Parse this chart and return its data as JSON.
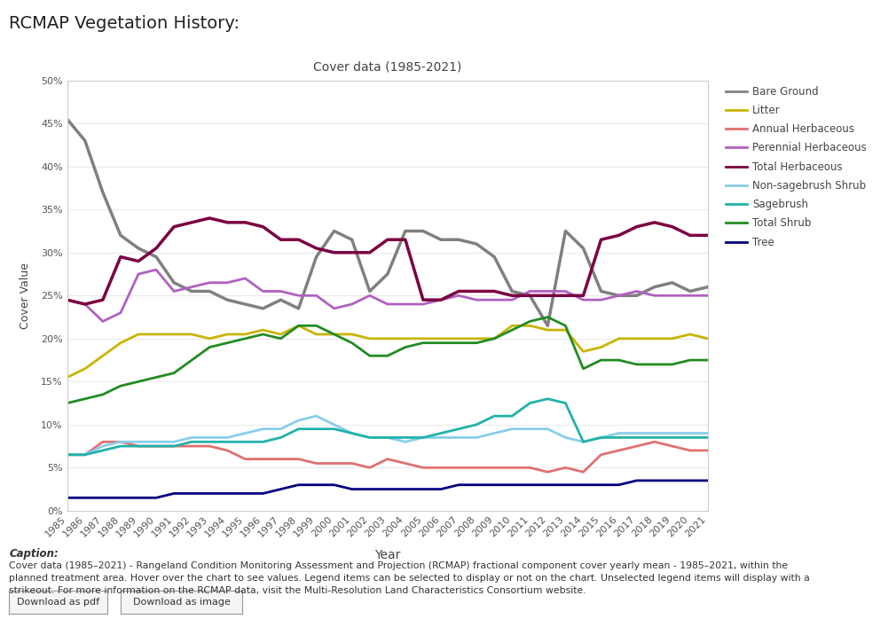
{
  "title": "RCMAP Vegetation History:",
  "chart_title": "Cover data (1985-2021)",
  "xlabel": "Year",
  "ylabel": "Cover Value",
  "years": [
    1985,
    1986,
    1987,
    1988,
    1989,
    1990,
    1991,
    1992,
    1993,
    1994,
    1995,
    1996,
    1997,
    1998,
    1999,
    2000,
    2001,
    2002,
    2003,
    2004,
    2005,
    2006,
    2007,
    2008,
    2009,
    2010,
    2011,
    2012,
    2013,
    2014,
    2015,
    2016,
    2017,
    2018,
    2019,
    2020,
    2021
  ],
  "series": {
    "Bare Ground": {
      "color": "#808080",
      "values": [
        45.5,
        43.0,
        37.0,
        32.0,
        30.5,
        29.5,
        26.5,
        25.5,
        25.5,
        24.5,
        24.0,
        23.5,
        24.5,
        23.5,
        29.5,
        32.5,
        31.5,
        25.5,
        27.5,
        32.5,
        32.5,
        31.5,
        31.5,
        31.0,
        29.5,
        25.5,
        25.0,
        21.5,
        32.5,
        30.5,
        25.5,
        25.0,
        25.0,
        26.0,
        26.5,
        25.5,
        26.0
      ]
    },
    "Litter": {
      "color": "#c8b400",
      "values": [
        15.5,
        16.5,
        18.0,
        19.5,
        20.5,
        20.5,
        20.5,
        20.5,
        20.0,
        20.5,
        20.5,
        21.0,
        20.5,
        21.5,
        20.5,
        20.5,
        20.5,
        20.0,
        20.0,
        20.0,
        20.0,
        20.0,
        20.0,
        20.0,
        20.0,
        21.5,
        21.5,
        21.0,
        21.0,
        18.5,
        19.0,
        20.0,
        20.0,
        20.0,
        20.0,
        20.5,
        20.0
      ]
    },
    "Annual Herbaceous": {
      "color": "#e07070",
      "values": [
        6.5,
        6.5,
        8.0,
        8.0,
        7.5,
        7.5,
        7.5,
        7.5,
        7.5,
        7.0,
        6.0,
        6.0,
        6.0,
        6.0,
        5.5,
        5.5,
        5.5,
        5.0,
        6.0,
        5.5,
        5.0,
        5.0,
        5.0,
        5.0,
        5.0,
        5.0,
        5.0,
        4.5,
        5.0,
        4.5,
        6.5,
        7.0,
        7.5,
        8.0,
        7.5,
        7.0,
        7.0
      ]
    },
    "Perennial Herbaceous": {
      "color": "#b060c0",
      "values": [
        24.5,
        24.0,
        22.0,
        23.0,
        27.5,
        28.0,
        25.5,
        26.0,
        26.5,
        26.5,
        27.0,
        25.5,
        25.5,
        25.0,
        25.0,
        23.5,
        24.0,
        25.0,
        24.0,
        24.0,
        24.0,
        24.5,
        25.0,
        24.5,
        24.5,
        24.5,
        25.5,
        25.5,
        25.5,
        24.5,
        24.5,
        25.0,
        25.5,
        25.0,
        25.0,
        25.0,
        25.0
      ]
    },
    "Total Herbaceous": {
      "color": "#7b0040",
      "values": [
        24.5,
        24.0,
        24.5,
        29.5,
        29.0,
        30.5,
        33.0,
        33.5,
        34.0,
        33.5,
        33.5,
        33.0,
        31.5,
        31.5,
        30.5,
        30.0,
        30.0,
        30.0,
        31.5,
        31.5,
        24.5,
        24.5,
        25.5,
        25.5,
        25.5,
        25.0,
        25.0,
        25.0,
        25.0,
        25.0,
        31.5,
        32.0,
        33.0,
        33.5,
        33.0,
        32.0,
        32.0
      ]
    },
    "Non-sagebrush Shrub": {
      "color": "#87ceeb",
      "values": [
        6.5,
        6.5,
        7.5,
        8.0,
        8.0,
        8.0,
        8.0,
        8.5,
        8.5,
        8.5,
        9.0,
        9.5,
        9.5,
        10.5,
        11.0,
        10.0,
        9.0,
        8.5,
        8.5,
        8.0,
        8.5,
        8.5,
        8.5,
        8.5,
        9.0,
        9.5,
        9.5,
        9.5,
        8.5,
        8.0,
        8.5,
        9.0,
        9.0,
        9.0,
        9.0,
        9.0,
        9.0
      ]
    },
    "Sagebrush": {
      "color": "#20b2aa",
      "values": [
        6.5,
        6.5,
        7.0,
        7.5,
        7.5,
        7.5,
        7.5,
        8.0,
        8.0,
        8.0,
        8.0,
        8.0,
        8.5,
        9.5,
        9.5,
        9.5,
        9.0,
        8.5,
        8.5,
        8.5,
        8.5,
        9.0,
        9.5,
        10.0,
        11.0,
        11.0,
        12.5,
        13.0,
        12.5,
        8.0,
        8.5,
        8.5,
        8.5,
        8.5,
        8.5,
        8.5,
        8.5
      ]
    },
    "Total Shrub": {
      "color": "#228B22",
      "values": [
        12.5,
        13.0,
        13.5,
        14.5,
        15.0,
        15.5,
        16.0,
        17.5,
        19.0,
        19.5,
        20.0,
        20.5,
        20.0,
        21.5,
        21.5,
        20.5,
        19.5,
        18.0,
        18.0,
        19.0,
        19.5,
        19.5,
        19.5,
        19.5,
        20.0,
        21.0,
        22.0,
        22.5,
        21.5,
        16.5,
        17.5,
        17.5,
        17.0,
        17.0,
        17.0,
        17.5,
        17.5
      ]
    },
    "Tree": {
      "color": "#000080",
      "values": [
        1.5,
        1.5,
        1.5,
        1.5,
        1.5,
        1.5,
        2.0,
        2.0,
        2.0,
        2.0,
        2.0,
        2.0,
        2.5,
        3.0,
        3.0,
        3.0,
        2.5,
        2.5,
        2.5,
        2.5,
        2.5,
        2.5,
        3.0,
        3.0,
        3.0,
        3.0,
        3.0,
        3.0,
        3.0,
        3.0,
        3.0,
        3.0,
        3.5,
        3.5,
        3.5,
        3.5,
        3.5
      ]
    }
  },
  "series_order": [
    "Bare Ground",
    "Litter",
    "Annual Herbaceous",
    "Perennial Herbaceous",
    "Total Herbaceous",
    "Non-sagebrush Shrub",
    "Sagebrush",
    "Total Shrub",
    "Tree"
  ],
  "caption_title": "Caption:",
  "caption_line1": "Cover data (1985–2021) - Rangeland Condition Monitoring Assessment and Projection (RCMAP) fractional component cover yearly mean - 1985–2021, within the",
  "caption_line2": "planned treatment area. Hover over the chart to see values. Legend items can be selected to display or not on the chart. Unselected legend items will display with a",
  "caption_line3": "strikeout. For more information on the RCMAP data, visit the Multi-Resolution Land Characteristics Consortium website.",
  "button1": "Download as pdf",
  "button2": "Download as image",
  "ylim": [
    0,
    50
  ],
  "yticks": [
    0,
    5,
    10,
    15,
    20,
    25,
    30,
    35,
    40,
    45,
    50
  ],
  "background_color": "#ffffff"
}
